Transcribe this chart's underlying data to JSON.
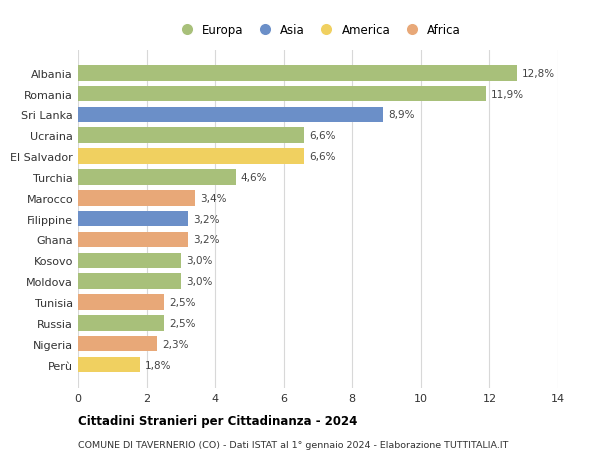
{
  "categories": [
    "Albania",
    "Romania",
    "Sri Lanka",
    "Ucraina",
    "El Salvador",
    "Turchia",
    "Marocco",
    "Filippine",
    "Ghana",
    "Kosovo",
    "Moldova",
    "Tunisia",
    "Russia",
    "Nigeria",
    "Perù"
  ],
  "values": [
    12.8,
    11.9,
    8.9,
    6.6,
    6.6,
    4.6,
    3.4,
    3.2,
    3.2,
    3.0,
    3.0,
    2.5,
    2.5,
    2.3,
    1.8
  ],
  "labels": [
    "12,8%",
    "11,9%",
    "8,9%",
    "6,6%",
    "6,6%",
    "4,6%",
    "3,4%",
    "3,2%",
    "3,2%",
    "3,0%",
    "3,0%",
    "2,5%",
    "2,5%",
    "2,3%",
    "1,8%"
  ],
  "continents": [
    "Europa",
    "Europa",
    "Asia",
    "Europa",
    "America",
    "Europa",
    "Africa",
    "Asia",
    "Africa",
    "Europa",
    "Europa",
    "Africa",
    "Europa",
    "Africa",
    "America"
  ],
  "colors": {
    "Europa": "#a8c07a",
    "Asia": "#6b8fc8",
    "America": "#f0d060",
    "Africa": "#e8a878"
  },
  "legend_order": [
    "Europa",
    "Asia",
    "America",
    "Africa"
  ],
  "title": "Cittadini Stranieri per Cittadinanza - 2024",
  "subtitle": "COMUNE DI TAVERNERIO (CO) - Dati ISTAT al 1° gennaio 2024 - Elaborazione TUTTITALIA.IT",
  "xlim": [
    0,
    14
  ],
  "xticks": [
    0,
    2,
    4,
    6,
    8,
    10,
    12,
    14
  ],
  "background_color": "#ffffff",
  "grid_color": "#d8d8d8"
}
